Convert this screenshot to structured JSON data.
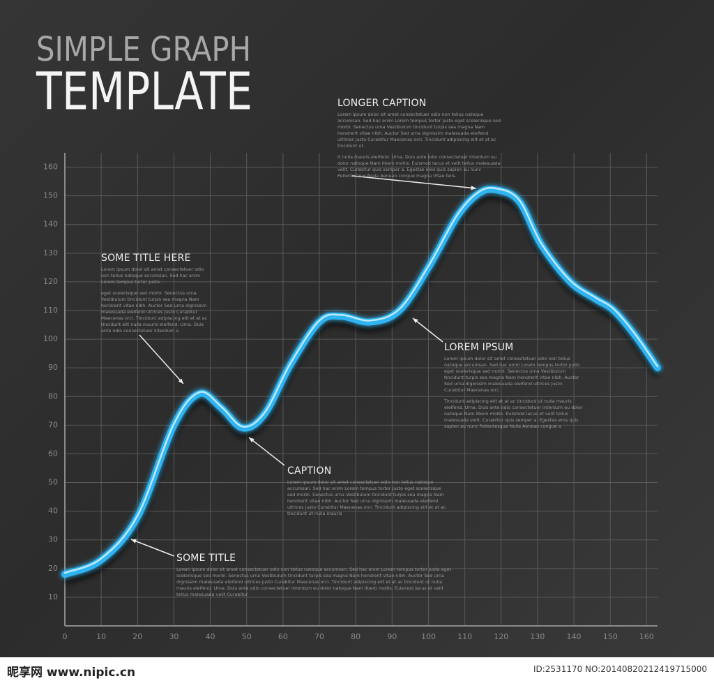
{
  "chart_data": {
    "type": "line",
    "title": "TEMPLATE",
    "subtitle": "SIMPLE GRAPH",
    "x": [
      0,
      10,
      20,
      30,
      37,
      43,
      49,
      55,
      62,
      70,
      76,
      84,
      92,
      100,
      108,
      114,
      119,
      125,
      131,
      139,
      146,
      151,
      157,
      163
    ],
    "values": [
      18,
      23,
      38,
      70,
      81,
      76,
      69,
      74,
      91,
      106,
      108,
      106,
      110,
      125,
      143,
      151,
      152,
      148,
      133,
      120,
      114,
      110,
      101,
      90
    ],
    "color": "#2fb4f2",
    "xlim": [
      0,
      163
    ],
    "ylim": [
      0,
      165
    ],
    "xticks": [
      0,
      10,
      20,
      30,
      40,
      50,
      60,
      70,
      80,
      90,
      100,
      110,
      120,
      130,
      140,
      150,
      160
    ],
    "yticks": [
      10,
      20,
      30,
      40,
      50,
      60,
      70,
      80,
      90,
      100,
      110,
      120,
      130,
      140,
      150,
      160
    ],
    "grid": true,
    "annotations": [
      {
        "title": "LONGER CAPTION",
        "body": [
          "Lorem ipsum dolor sit amet consectetuer odio non tellus natoque accumsan. Sed hac enim Lorem tempus tortor justo eget scelerisque sed morbi. Senectus urna Vestibulum tincidunt turpis sea magna Nam hendrerit vitae nibh. Auctor Sed urna dignissim malesuada eleifend ultrices justo Curabitur Maecenas orci. Tincidunt adipiscing elit et at ac tincidunt ut.",
          "It nulla mauris eleifend. Urna. Duis ante odio consectetuer interdum eu dolor natoque Nam libero mollis. Euismod lacus et velit tellus malesuada velit. Curabitur quis semper a. Egestas eros quis sapien au nunc Pellentesque Nulla Aenean congue magna Vitae felis."
        ]
      },
      {
        "title": "SOME TITLE HERE",
        "body": [
          "Lorem ipsum dolor sit amet consectetuer odio non tellus natoque accumsan. Sed hac enim Lorem tempus tortor justo.",
          "eget scelerisque sed morbi. Senectus urna Vestibulum tincidunt turpis sea magna Nam hendrerit vitae nibh. Auctor Sed urna dignissim malesuada eleifend ultrices justo Curabitur Maecenas orci. Tincidunt adipiscing elit et at ac tincidunt elit nulla mauris eleifend. Urna. Duis ante odio consectetuer interdum a"
        ]
      },
      {
        "title": "LOREM IPSUM",
        "body": [
          "Lorem ipsum dolor sit amet consectetuer odio non tellus natoque accumsan. Sed hac enim Lorem tempus tortor justo eget scelerisque sed morbi. Senectus urna Vestibulum tincidunt turpis sea magna Nam hendrerit vitae nibh. Auctor Sed urna dignissim malesuada eleifend ultrices justo Curabitur Maecenas orci.",
          "Tincidunt adipiscing elit et at ac tincidunt ut nulla mauris eleifend. Urna. Duis ante odio consectetuer interdum eu dolor natoque Nam libero mollis. Euismod lacus et velit tellus malesuada velit. Curabitur quis semper a. Egestas eros quis sapien au nunc Pellentesque Nulla Aenean congue a"
        ]
      },
      {
        "title": "CAPTION",
        "body": [
          "Lorem ipsum dolor sit amet consectetuer odio non tellus natoque accumsan. Sed hac enim Lorem tempus tortor justo eget scelerisque sed morbi. Senectus urna Vestibulum tincidunt turpis sea magna Nam hendrerit vitae nibh. Auctor Sed urna dignissim malesuada eleifend ultrices justo Curabitur Maecenas orci. Tincidunt adipiscing elit et at ac tincidunt ut nulla mauris"
        ]
      },
      {
        "title": "SOME TITLE",
        "body": [
          "Lorem ipsum dolor sit amet consectetuer odio non tellus natoque accumsan. Sed hac enim Lorem tempus tortor justo eget scelerisque sed morbi. Senectus urna Vestibulum tincidunt turpis sea magna Nam hendrerit vitae nibh. Auctor Sed urna dignissim malesuada eleifend ultrices justo Curabitur Maecenas orci. Tincidunt adipiscing elit et at ac tincidunt ut nulla mauris eleifend. Urna. Duis ante odio consectetuer interdum eu dolor natoque Nam libero mollis. Euismod lacus et velit tellus malesuada velit Curabitur"
        ]
      }
    ],
    "watermark": "昵享网 www.nipic.cn",
    "image_id": "ID:2531170 NO:20140820212419715000"
  }
}
